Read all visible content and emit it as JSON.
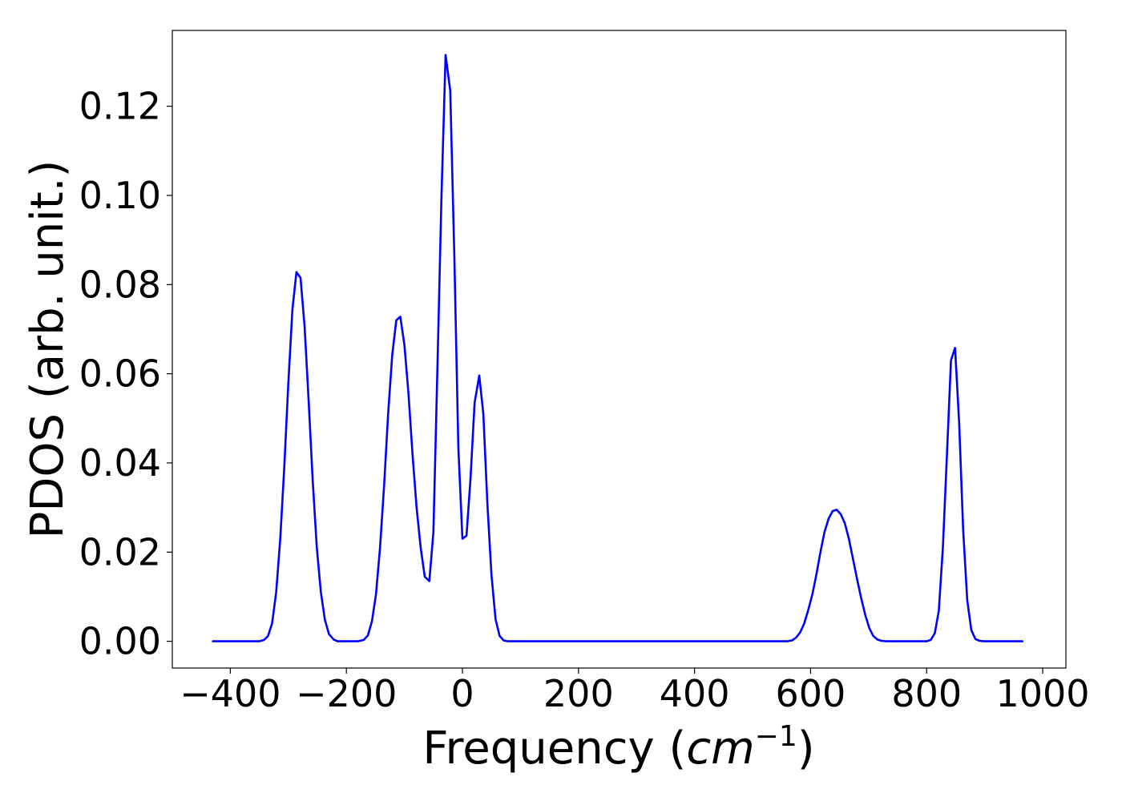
{
  "chart_data": {
    "type": "line",
    "title": "",
    "xlabel": "Frequency (cm⁻¹)",
    "xlabel_parts": {
      "prefix": "Frequency (",
      "unit_base": "cm",
      "unit_exponent": "−1",
      "suffix": ")"
    },
    "ylabel": "PDOS (arb. unit.)",
    "xlim": [
      -500,
      1040
    ],
    "ylim": [
      -0.006,
      0.137
    ],
    "x_ticks": [
      -400,
      -200,
      0,
      200,
      400,
      600,
      800,
      1000
    ],
    "x_tick_labels": [
      "−400",
      "−200",
      "0",
      "200",
      "400",
      "600",
      "800",
      "1000"
    ],
    "y_ticks": [
      0.0,
      0.02,
      0.04,
      0.06,
      0.08,
      0.1,
      0.12
    ],
    "y_tick_labels": [
      "0.00",
      "0.02",
      "0.04",
      "0.06",
      "0.08",
      "0.10",
      "0.12"
    ],
    "grid": false,
    "legend": "none",
    "series": [
      {
        "color": "#0000ff",
        "x": [
          -430,
          -350,
          -342,
          -335,
          -328,
          -321,
          -314,
          -307,
          -300,
          -293,
          -286,
          -279,
          -272,
          -265,
          -258,
          -251,
          -244,
          -237,
          -230,
          -222,
          -215,
          -180,
          -170,
          -163,
          -156,
          -149,
          -142,
          -135,
          -128,
          -121,
          -114,
          -107,
          -100,
          -93,
          -86,
          -79,
          -72,
          -65,
          -57,
          -50,
          -43,
          -36,
          -29,
          -21,
          -14,
          -7,
          0,
          7,
          14,
          21,
          29,
          36,
          43,
          50,
          57,
          64,
          71,
          78,
          86,
          560,
          568,
          575,
          582,
          589,
          596,
          603,
          610,
          617,
          624,
          631,
          638,
          645,
          652,
          659,
          666,
          673,
          680,
          687,
          694,
          701,
          708,
          715,
          722,
          730,
          800,
          807,
          814,
          821,
          828,
          835,
          842,
          849,
          856,
          863,
          870,
          877,
          884,
          891,
          898,
          965
        ],
        "y": [
          0.0,
          0.0,
          0.0003,
          0.0012,
          0.004,
          0.011,
          0.023,
          0.039,
          0.058,
          0.0745,
          0.0828,
          0.0815,
          0.0705,
          0.054,
          0.036,
          0.021,
          0.011,
          0.0048,
          0.0016,
          0.0004,
          0.0,
          0.0,
          0.0003,
          0.0013,
          0.0045,
          0.0105,
          0.021,
          0.035,
          0.051,
          0.0642,
          0.072,
          0.0728,
          0.0665,
          0.0555,
          0.042,
          0.03,
          0.021,
          0.0145,
          0.0135,
          0.0245,
          0.062,
          0.1,
          0.1315,
          0.1235,
          0.0865,
          0.0435,
          0.023,
          0.0237,
          0.0365,
          0.0535,
          0.0596,
          0.051,
          0.031,
          0.015,
          0.005,
          0.0012,
          0.0002,
          0.0,
          0.0,
          0.0,
          0.0002,
          0.0008,
          0.002,
          0.004,
          0.007,
          0.0105,
          0.015,
          0.02,
          0.0245,
          0.0275,
          0.0292,
          0.0295,
          0.0285,
          0.0265,
          0.023,
          0.0185,
          0.014,
          0.0098,
          0.006,
          0.003,
          0.0012,
          0.0004,
          0.0001,
          0.0,
          0.0,
          0.0003,
          0.0018,
          0.0068,
          0.021,
          0.042,
          0.063,
          0.0658,
          0.049,
          0.025,
          0.0092,
          0.0025,
          0.0005,
          0.0001,
          0.0,
          0.0
        ]
      }
    ]
  }
}
